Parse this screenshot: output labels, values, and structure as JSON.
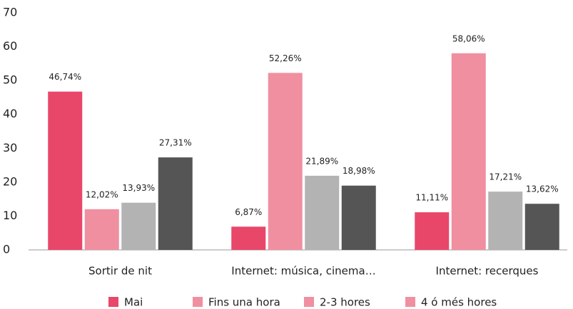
{
  "chart_data": {
    "type": "bar",
    "categories": [
      "Sortir de nit",
      "Internet: música, cinema…",
      "Internet: recerques"
    ],
    "series": [
      {
        "name": "Mai",
        "color": "#e8476a",
        "legend_color": "#e8476a",
        "values": [
          46.74,
          6.87,
          11.11
        ],
        "value_labels": [
          "46,74%",
          "6,87%",
          "11,11%"
        ]
      },
      {
        "name": "Fins una hora",
        "color": "#f08fa0",
        "legend_color": "#f08fa0",
        "values": [
          12.02,
          52.26,
          58.06
        ],
        "value_labels": [
          "12,02%",
          "52,26%",
          "58,06%"
        ]
      },
      {
        "name": "2-3 hores",
        "color": "#b3b3b3",
        "legend_color": "#f08fa0",
        "values": [
          13.93,
          21.89,
          17.21
        ],
        "value_labels": [
          "13,93%",
          "21,89%",
          "17,21%"
        ]
      },
      {
        "name": "4 ó més hores",
        "color": "#555555",
        "legend_color": "#f08fa0",
        "values": [
          27.31,
          18.98,
          13.62
        ],
        "value_labels": [
          "27,31%",
          "18,98%",
          "13,62%"
        ]
      }
    ],
    "ylim": [
      0,
      70
    ],
    "yticks": [
      0,
      10,
      20,
      30,
      40,
      50,
      60,
      70
    ],
    "grid": false
  }
}
